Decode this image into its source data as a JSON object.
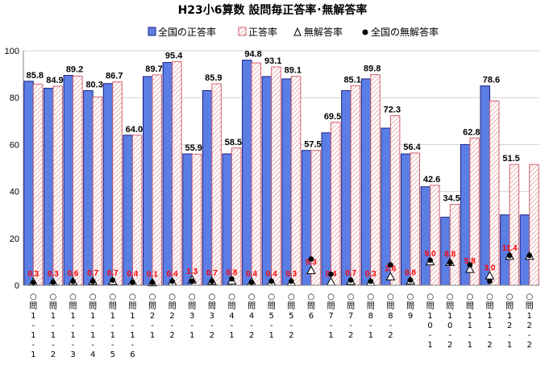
{
  "chart_data": {
    "type": "bar",
    "title": "H23小6算数 設問毎正答率･無解答率",
    "ylim": [
      0,
      100
    ],
    "yticks": [
      0,
      20,
      40,
      60,
      80,
      100
    ],
    "categories": [
      "○問1-1-1",
      "○問1-1-2",
      "○問1-1-3",
      "○問1-1-4",
      "○問1-1-5",
      "○問1-1-6",
      "○問2-1",
      "○問2-2",
      "○問3-1",
      "○問3-2",
      "○問4-1",
      "○問4-2",
      "○問5-1",
      "○問5-2",
      "○問6",
      "○問7-1",
      "○問7-2",
      "○問8-1",
      "○問8-2",
      "○問9",
      "○問10-1",
      "○問10-2",
      "○問11-1",
      "○問11-2",
      "○問12-1",
      "○問12-2"
    ],
    "legend": {
      "national_correct": "全国の正答率",
      "correct": "正答率",
      "no_answer": "無解答率",
      "national_no_answer": "全国の無解答率"
    },
    "series": [
      {
        "name": "全国の正答率",
        "values": [
          87.0,
          84.0,
          89.5,
          83.0,
          86.0,
          64.0,
          89.0,
          95.0,
          56.0,
          83.0,
          56.0,
          96.0,
          89.0,
          88.0,
          57.5,
          65.0,
          83.0,
          88.0,
          67.0,
          56.0,
          42.0,
          29.0,
          60.0,
          85.0,
          30.0,
          30.0
        ]
      },
      {
        "name": "正答率",
        "values": [
          85.8,
          84.9,
          89.2,
          80.3,
          86.7,
          64.0,
          89.7,
          95.4,
          55.9,
          85.9,
          58.5,
          94.8,
          93.1,
          89.1,
          57.5,
          69.5,
          85.1,
          89.8,
          72.3,
          56.4,
          42.6,
          34.5,
          62.8,
          78.6,
          51.5,
          51.5
        ],
        "labels": [
          "85.8",
          "84.9",
          "89.2",
          "80.3",
          "86.7",
          "64.0",
          "89.7",
          "95.4",
          "55.9",
          "85.9",
          "58.5",
          "94.8",
          "93.1",
          "89.1",
          "57.5",
          "69.5",
          "85.1",
          "89.8",
          "72.3",
          "56.4",
          "42.6",
          "34.5",
          "62.8",
          "78.6",
          "51.5",
          ""
        ]
      },
      {
        "name": "無解答率",
        "values": [
          0.3,
          0.3,
          0.6,
          0.7,
          0.7,
          0.4,
          0.1,
          0.4,
          1.3,
          0.7,
          0.8,
          0.4,
          0.4,
          0.3,
          5.3,
          0.4,
          0.7,
          0.3,
          2.6,
          0.8,
          9.0,
          8.8,
          5.8,
          3.0,
          11.4,
          11.4
        ],
        "labels": [
          "0.3",
          "0.3",
          "0.6",
          "0.7",
          "0.7",
          "0.4",
          "0.1",
          "0.4",
          "1.3",
          "0.7",
          "0.8",
          "0.4",
          "0.4",
          "0.3",
          "5.3",
          "0.4",
          "0.7",
          "0.3",
          "2.6",
          "0.8",
          "9.0",
          "8.8",
          "5.8",
          "3.0",
          "11.4",
          ""
        ]
      },
      {
        "name": "全国の無解答率",
        "values": [
          0.4,
          0.5,
          1.0,
          1.0,
          1.5,
          0.5,
          0.5,
          1.0,
          1.0,
          1.0,
          2.0,
          0.5,
          1.0,
          1.0,
          10.5,
          4.0,
          1.5,
          1.0,
          8.0,
          1.5,
          10.0,
          9.0,
          8.0,
          1.0,
          12.0,
          12.0
        ]
      }
    ],
    "colors": {
      "national_bar_fill": "#5b7ee5",
      "national_bar_stroke": "#1f1f80",
      "correct_fill": "#ffffff",
      "correct_hatch": "#e69090",
      "correct_stroke": "#d06070",
      "gridline": "#d0d0d0",
      "noans_label": "#ff0000"
    },
    "grid": true,
    "legend_position": "top"
  }
}
